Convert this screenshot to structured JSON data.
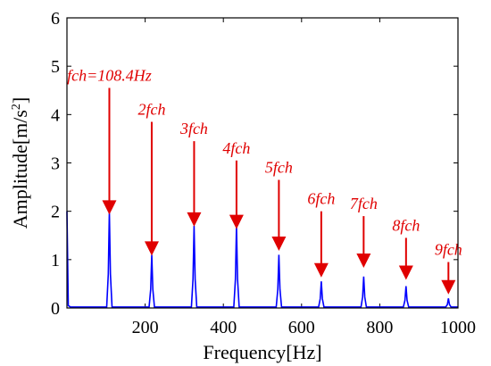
{
  "chart_data": {
    "type": "line",
    "title": "",
    "xlabel": "Frequency[Hz]",
    "ylabel": "Amplitude[m/s",
    "ylabel_sup": "2",
    "ylabel_suffix": "]",
    "xlim": [
      0,
      1000
    ],
    "ylim": [
      0,
      6
    ],
    "xticks": [
      200,
      400,
      600,
      800,
      1000
    ],
    "yticks": [
      0,
      1,
      2,
      3,
      4,
      5,
      6
    ],
    "grid": false,
    "legend": "none",
    "series_color": "#0000ff",
    "annotation_color": "#e00000",
    "baseline_peak": {
      "x": 0,
      "y": 2.0
    },
    "peaks": [
      {
        "x": 108.4,
        "y": 2.0,
        "label": "fch=108.4Hz",
        "label_y": 4.55
      },
      {
        "x": 216.8,
        "y": 1.1,
        "label": "2fch",
        "label_y": 3.85
      },
      {
        "x": 325.2,
        "y": 1.7,
        "label": "3fch",
        "label_y": 3.45
      },
      {
        "x": 433.6,
        "y": 1.7,
        "label": "4fch",
        "label_y": 3.05
      },
      {
        "x": 542.0,
        "y": 1.1,
        "label": "5fch",
        "label_y": 2.65
      },
      {
        "x": 650.4,
        "y": 0.55,
        "label": "6fch",
        "label_y": 2.0
      },
      {
        "x": 758.8,
        "y": 0.65,
        "label": "7fch",
        "label_y": 1.9
      },
      {
        "x": 867.2,
        "y": 0.45,
        "label": "8fch",
        "label_y": 1.45
      },
      {
        "x": 975.6,
        "y": 0.2,
        "label": "9fch",
        "label_y": 0.95
      }
    ],
    "marker_y": [
      1.95,
      1.1,
      1.7,
      1.65,
      1.2,
      0.65,
      0.85,
      0.6,
      0.3
    ]
  }
}
